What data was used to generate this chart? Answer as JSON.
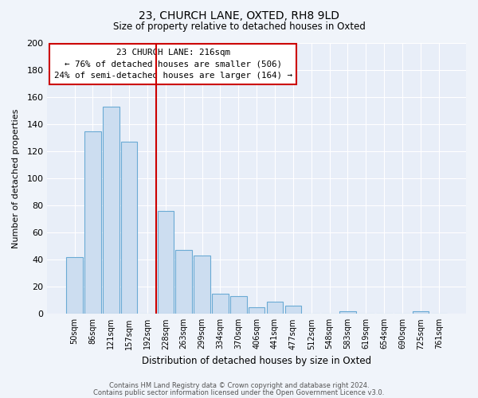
{
  "title": "23, CHURCH LANE, OXTED, RH8 9LD",
  "subtitle": "Size of property relative to detached houses in Oxted",
  "xlabel": "Distribution of detached houses by size in Oxted",
  "ylabel": "Number of detached properties",
  "bar_labels": [
    "50sqm",
    "86sqm",
    "121sqm",
    "157sqm",
    "192sqm",
    "228sqm",
    "263sqm",
    "299sqm",
    "334sqm",
    "370sqm",
    "406sqm",
    "441sqm",
    "477sqm",
    "512sqm",
    "548sqm",
    "583sqm",
    "619sqm",
    "654sqm",
    "690sqm",
    "725sqm",
    "761sqm"
  ],
  "bar_values": [
    42,
    135,
    153,
    127,
    0,
    76,
    47,
    43,
    15,
    13,
    5,
    9,
    6,
    0,
    0,
    2,
    0,
    0,
    0,
    2,
    0
  ],
  "bar_color": "#ccddf0",
  "bar_edge_color": "#6aaad4",
  "vline_x": 4.5,
  "vline_color": "#cc0000",
  "ylim": [
    0,
    200
  ],
  "yticks": [
    0,
    20,
    40,
    60,
    80,
    100,
    120,
    140,
    160,
    180,
    200
  ],
  "annotation_title": "23 CHURCH LANE: 216sqm",
  "annotation_line1": "← 76% of detached houses are smaller (506)",
  "annotation_line2": "24% of semi-detached houses are larger (164) →",
  "footer1": "Contains HM Land Registry data © Crown copyright and database right 2024.",
  "footer2": "Contains public sector information licensed under the Open Government Licence v3.0.",
  "bg_color": "#f0f4fa",
  "plot_bg_color": "#e8eef8"
}
